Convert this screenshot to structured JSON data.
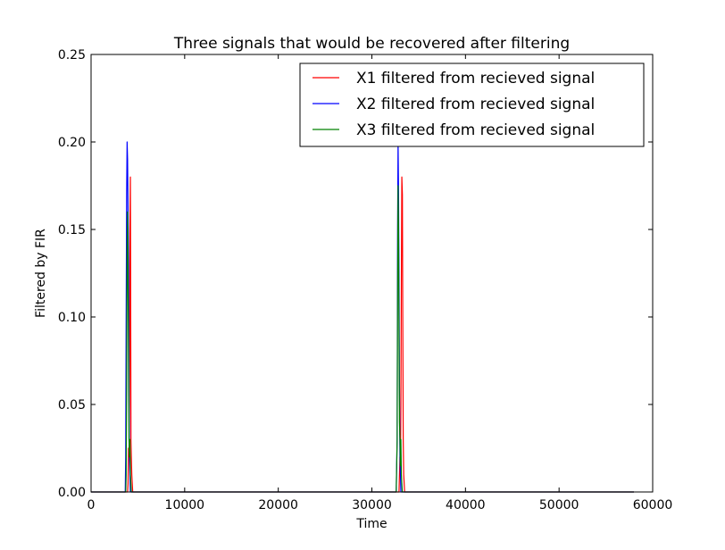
{
  "chart_data": {
    "type": "line",
    "title": "Three signals that would be recovered after filtering",
    "xlabel": "Time",
    "ylabel": "Filtered by FIR",
    "xlim": [
      0,
      60000
    ],
    "ylim": [
      0,
      0.25
    ],
    "x_ticks": [
      0,
      10000,
      20000,
      30000,
      40000,
      50000,
      60000
    ],
    "x_tick_labels": [
      "0",
      "10000",
      "20000",
      "30000",
      "40000",
      "50000",
      "60000"
    ],
    "y_ticks": [
      0,
      0.05,
      0.1,
      0.15,
      0.2,
      0.25
    ],
    "y_tick_labels": [
      "0.00",
      "0.05",
      "0.10",
      "0.15",
      "0.20",
      "0.25"
    ],
    "grid": false,
    "legend_position": "top-right",
    "series": [
      {
        "name": "X1 filtered from recieved signal",
        "color": "#ff0000",
        "points": [
          [
            0,
            0
          ],
          [
            3900,
            0
          ],
          [
            3950,
            0.005
          ],
          [
            4000,
            0.025
          ],
          [
            4050,
            0.02
          ],
          [
            4100,
            0.05
          ],
          [
            4150,
            0.15
          ],
          [
            4200,
            0.18
          ],
          [
            4230,
            0.12
          ],
          [
            4260,
            0.03
          ],
          [
            4300,
            0.02
          ],
          [
            4350,
            0.01
          ],
          [
            4450,
            0
          ],
          [
            32700,
            0
          ],
          [
            32900,
            0
          ],
          [
            33000,
            0.02
          ],
          [
            33050,
            0.01
          ],
          [
            33100,
            0.05
          ],
          [
            33150,
            0.12
          ],
          [
            33200,
            0.18
          ],
          [
            33260,
            0.17
          ],
          [
            33300,
            0.1
          ],
          [
            33350,
            0.03
          ],
          [
            33400,
            0.01
          ],
          [
            33500,
            0
          ],
          [
            58000,
            0
          ]
        ]
      },
      {
        "name": "X2 filtered from recieved signal",
        "color": "#0000ff",
        "points": [
          [
            0,
            0
          ],
          [
            3650,
            0
          ],
          [
            3700,
            0.02
          ],
          [
            3750,
            0.1
          ],
          [
            3800,
            0.17
          ],
          [
            3850,
            0.2
          ],
          [
            3900,
            0.19
          ],
          [
            3950,
            0.16
          ],
          [
            4000,
            0.13
          ],
          [
            4050,
            0.06
          ],
          [
            4100,
            0.02
          ],
          [
            4200,
            0
          ],
          [
            32600,
            0
          ],
          [
            32700,
            0.03
          ],
          [
            32750,
            0.15
          ],
          [
            32800,
            0.2
          ],
          [
            32850,
            0.17
          ],
          [
            32900,
            0.12
          ],
          [
            32950,
            0.06
          ],
          [
            33000,
            0.02
          ],
          [
            33100,
            0
          ],
          [
            58000,
            0
          ]
        ]
      },
      {
        "name": "X3 filtered from recieved signal",
        "color": "#008000",
        "points": [
          [
            0,
            0
          ],
          [
            3700,
            0
          ],
          [
            3750,
            0.01
          ],
          [
            3800,
            0.06
          ],
          [
            3850,
            0.14
          ],
          [
            3900,
            0.16
          ],
          [
            3950,
            0.12
          ],
          [
            4000,
            0.08
          ],
          [
            4050,
            0.03
          ],
          [
            4100,
            0.02
          ],
          [
            4150,
            0.03
          ],
          [
            4200,
            0.01
          ],
          [
            4300,
            0
          ],
          [
            32600,
            0
          ],
          [
            32700,
            0.03
          ],
          [
            32750,
            0.12
          ],
          [
            32800,
            0.175
          ],
          [
            32850,
            0.15
          ],
          [
            32900,
            0.09
          ],
          [
            32950,
            0.04
          ],
          [
            33000,
            0.03
          ],
          [
            33050,
            0.015
          ],
          [
            33100,
            0.03
          ],
          [
            33150,
            0.01
          ],
          [
            33250,
            0
          ],
          [
            58000,
            0
          ]
        ]
      }
    ]
  }
}
